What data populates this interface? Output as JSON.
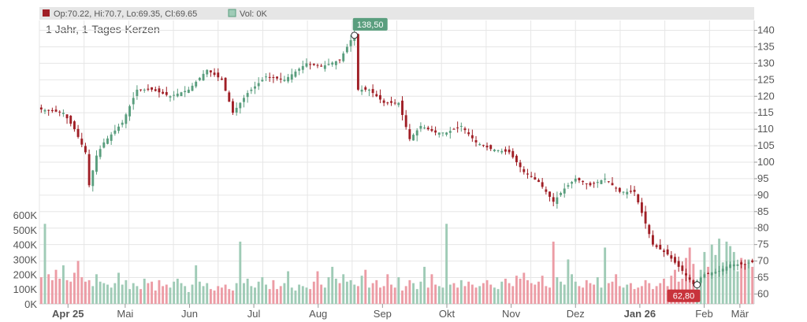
{
  "legend": {
    "ohlc_label": "Op:70.22, Hi:70.7, Lo:69.35, Cl:69.65",
    "vol_label": "Vol: 0K"
  },
  "subtitle": "1 Jahr, 1-Tages-Kerzen",
  "colors": {
    "up": "#5a9e7e",
    "down": "#a01f26",
    "vol_up": "#9fcbb6",
    "vol_down": "#ec9ca5",
    "grid": "#e6e6e6",
    "legend_bg": "#e6e6e6",
    "high_flag": "#5a9e7e",
    "low_flag": "#c8333b"
  },
  "chart_data": {
    "type": "candlestick",
    "price_axis": {
      "min": 57,
      "max": 143,
      "ticks": [
        60,
        65,
        70,
        75,
        80,
        85,
        90,
        95,
        100,
        105,
        110,
        115,
        120,
        125,
        130,
        135,
        140
      ]
    },
    "volume_axis": {
      "min": 0,
      "max": 600000,
      "tick_labels": [
        "0K",
        "100K",
        "200K",
        "300K",
        "400K",
        "500K",
        "600K"
      ],
      "tick_values": [
        0,
        100000,
        200000,
        300000,
        400000,
        500000,
        600000
      ]
    },
    "x_labels": [
      "Apr 25",
      "Mai",
      "Jun",
      "Jul",
      "Aug",
      "Sep",
      "Okt",
      "Nov",
      "Dez",
      "Jan 26",
      "Feb",
      "Mär"
    ],
    "x_label_positions": [
      0.04,
      0.12,
      0.21,
      0.3,
      0.39,
      0.48,
      0.57,
      0.66,
      0.75,
      0.84,
      0.93,
      0.98
    ],
    "bold_labels": [
      "Apr 25",
      "Jan 26"
    ],
    "high_marker": {
      "value": 138.5,
      "label": "138,50"
    },
    "low_marker": {
      "value": 62.8,
      "label": "62,80"
    },
    "last_candle": {
      "open": 70.22,
      "high": 70.7,
      "low": 69.35,
      "close": 69.65
    },
    "price_anchors": [
      [
        0,
        116
      ],
      [
        6,
        115
      ],
      [
        9,
        110
      ],
      [
        12,
        103
      ],
      [
        13,
        93
      ],
      [
        15,
        102
      ],
      [
        17,
        106
      ],
      [
        22,
        112
      ],
      [
        26,
        122
      ],
      [
        30,
        122
      ],
      [
        35,
        120
      ],
      [
        40,
        122
      ],
      [
        45,
        128
      ],
      [
        49,
        125
      ],
      [
        52,
        115
      ],
      [
        56,
        121
      ],
      [
        61,
        126
      ],
      [
        66,
        125
      ],
      [
        72,
        130
      ],
      [
        76,
        129
      ],
      [
        81,
        131
      ],
      [
        84,
        137
      ],
      [
        85,
        139
      ],
      [
        86,
        122
      ],
      [
        89,
        122
      ],
      [
        93,
        118
      ],
      [
        97,
        118
      ],
      [
        100,
        107
      ],
      [
        103,
        111
      ],
      [
        107,
        109
      ],
      [
        110,
        109
      ],
      [
        114,
        111
      ],
      [
        118,
        106
      ],
      [
        122,
        104
      ],
      [
        127,
        103
      ],
      [
        131,
        97
      ],
      [
        135,
        94
      ],
      [
        139,
        88
      ],
      [
        142,
        92
      ],
      [
        145,
        95
      ],
      [
        149,
        93
      ],
      [
        153,
        95
      ],
      [
        157,
        91
      ],
      [
        161,
        91
      ],
      [
        166,
        75
      ],
      [
        170,
        72
      ],
      [
        174,
        67
      ],
      [
        177,
        63
      ],
      [
        180,
        66
      ],
      [
        184,
        67
      ],
      [
        187,
        69
      ],
      [
        191,
        69
      ],
      [
        193,
        70
      ]
    ],
    "volume_series": [
      180000,
      540000,
      200000,
      160000,
      230000,
      170000,
      260000,
      160000,
      150000,
      210000,
      290000,
      180000,
      150000,
      160000,
      120000,
      200000,
      150000,
      140000,
      130000,
      110000,
      140000,
      210000,
      130000,
      160000,
      100000,
      140000,
      120000,
      100000,
      170000,
      140000,
      150000,
      90000,
      160000,
      120000,
      130000,
      110000,
      150000,
      170000,
      140000,
      120000,
      80000,
      130000,
      260000,
      150000,
      120000,
      140000,
      100000,
      90000,
      120000,
      110000,
      130000,
      100000,
      90000,
      140000,
      420000,
      140000,
      170000,
      120000,
      110000,
      150000,
      180000,
      130000,
      100000,
      160000,
      100000,
      120000,
      140000,
      220000,
      110000,
      90000,
      130000,
      120000,
      110000,
      100000,
      150000,
      220000,
      130000,
      110000,
      180000,
      250000,
      170000,
      140000,
      200000,
      150000,
      160000,
      130000,
      120000,
      190000,
      230000,
      110000,
      140000,
      160000,
      110000,
      120000,
      200000,
      130000,
      110000,
      180000,
      90000,
      120000,
      160000,
      140000,
      100000,
      150000,
      250000,
      110000,
      200000,
      130000,
      120000,
      110000,
      540000,
      130000,
      140000,
      110000,
      160000,
      120000,
      150000,
      130000,
      110000,
      120000,
      140000,
      160000,
      130000,
      110000,
      100000,
      150000,
      170000,
      140000,
      120000,
      190000,
      170000,
      210000,
      160000,
      140000,
      130000,
      150000,
      190000,
      120000,
      110000,
      420000,
      180000,
      150000,
      130000,
      300000,
      200000,
      150000,
      120000,
      110000,
      160000,
      140000,
      130000,
      180000,
      110000,
      380000,
      140000,
      150000,
      200000,
      120000,
      110000,
      130000,
      140000,
      100000,
      110000,
      120000,
      160000,
      140000,
      100000,
      120000,
      140000,
      170000,
      120000,
      190000,
      230000,
      150000,
      170000,
      310000,
      380000,
      270000,
      150000,
      230000,
      350000,
      250000,
      400000,
      330000,
      440000,
      280000,
      420000,
      390000,
      350000,
      220000,
      310000,
      270000,
      300000,
      250000,
      330000,
      240000,
      200000,
      270000,
      190000,
      220000,
      160000,
      110000,
      0
    ]
  }
}
